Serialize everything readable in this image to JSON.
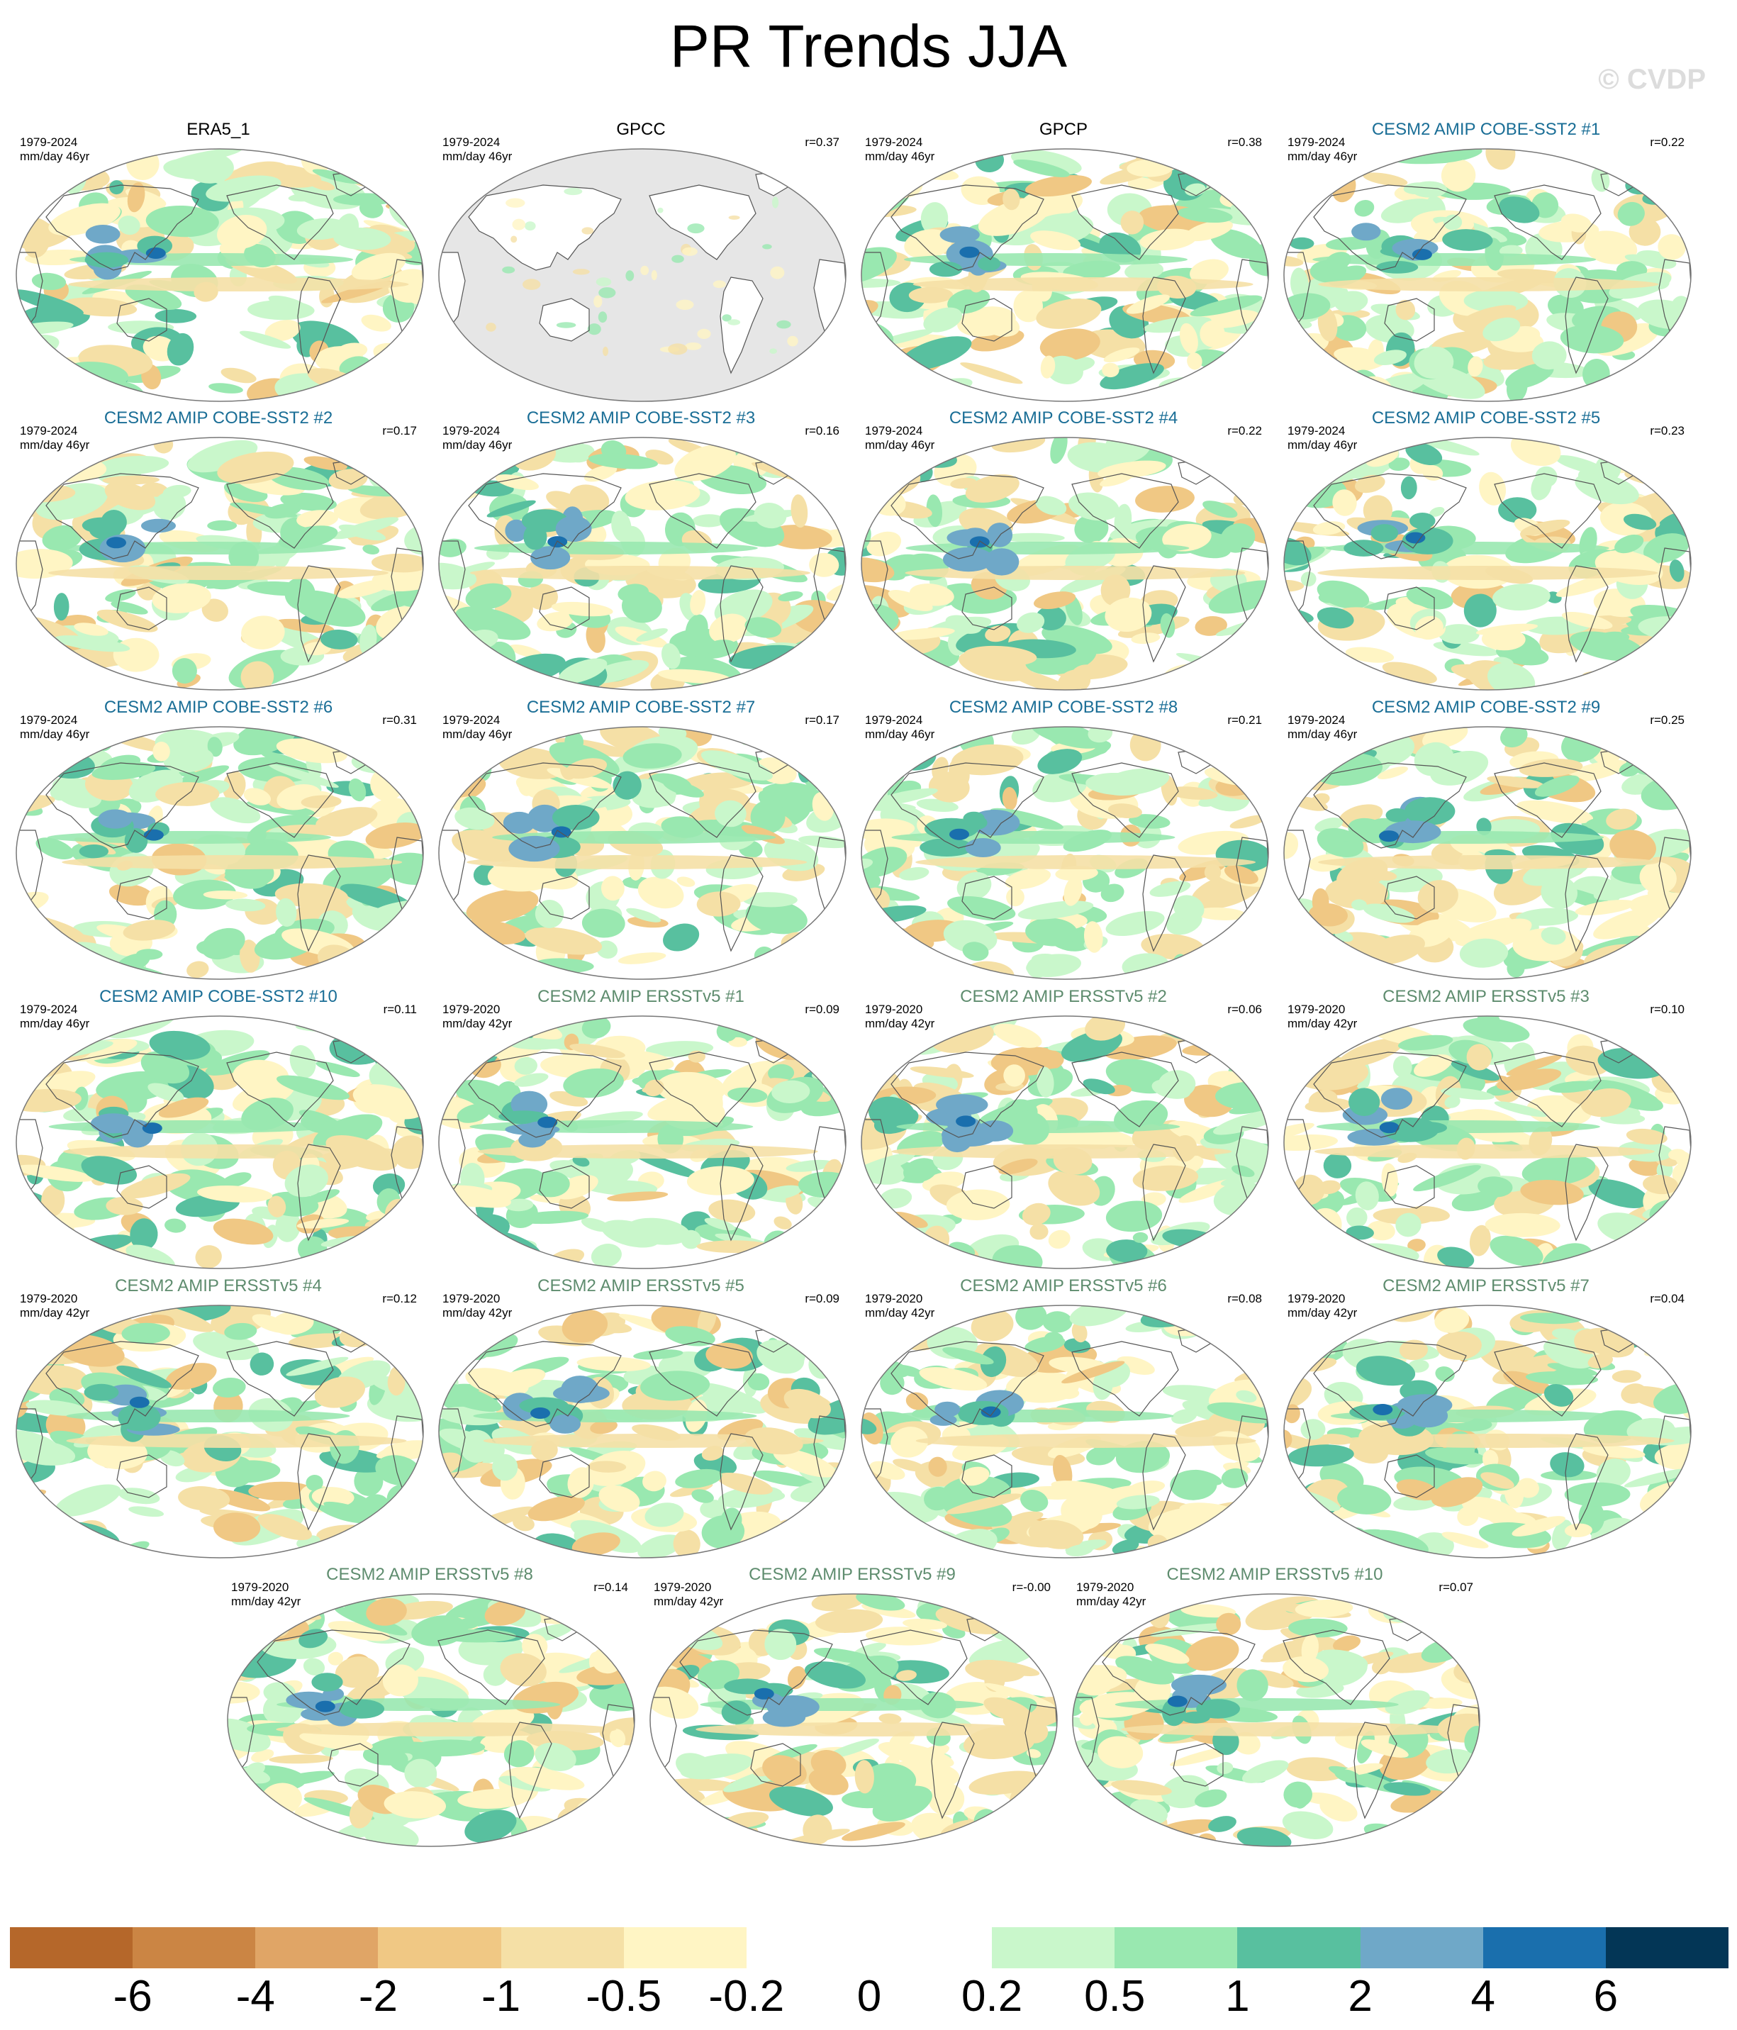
{
  "title": "PR Trends JJA",
  "watermark": "© CVDP",
  "title_colors": {
    "obs": "#000000",
    "cobe": "#1a6e96",
    "ersst": "#5e8c6e"
  },
  "panels": [
    {
      "title": "ERA5_1",
      "group": "obs",
      "period": "1979-2024",
      "units": "mm/day 46yr",
      "r": "",
      "land_masked": false
    },
    {
      "title": "GPCC",
      "group": "obs",
      "period": "1979-2024",
      "units": "mm/day 46yr",
      "r": "r=0.37",
      "land_masked": true
    },
    {
      "title": "GPCP",
      "group": "obs",
      "period": "1979-2024",
      "units": "mm/day 46yr",
      "r": "r=0.38",
      "land_masked": false
    },
    {
      "title": "CESM2 AMIP COBE-SST2 #1",
      "group": "cobe",
      "period": "1979-2024",
      "units": "mm/day 46yr",
      "r": "r=0.22",
      "land_masked": false
    },
    {
      "title": "CESM2 AMIP COBE-SST2 #2",
      "group": "cobe",
      "period": "1979-2024",
      "units": "mm/day 46yr",
      "r": "r=0.17",
      "land_masked": false
    },
    {
      "title": "CESM2 AMIP COBE-SST2 #3",
      "group": "cobe",
      "period": "1979-2024",
      "units": "mm/day 46yr",
      "r": "r=0.16",
      "land_masked": false
    },
    {
      "title": "CESM2 AMIP COBE-SST2 #4",
      "group": "cobe",
      "period": "1979-2024",
      "units": "mm/day 46yr",
      "r": "r=0.22",
      "land_masked": false
    },
    {
      "title": "CESM2 AMIP COBE-SST2 #5",
      "group": "cobe",
      "period": "1979-2024",
      "units": "mm/day 46yr",
      "r": "r=0.23",
      "land_masked": false
    },
    {
      "title": "CESM2 AMIP COBE-SST2 #6",
      "group": "cobe",
      "period": "1979-2024",
      "units": "mm/day 46yr",
      "r": "r=0.31",
      "land_masked": false
    },
    {
      "title": "CESM2 AMIP COBE-SST2 #7",
      "group": "cobe",
      "period": "1979-2024",
      "units": "mm/day 46yr",
      "r": "r=0.17",
      "land_masked": false
    },
    {
      "title": "CESM2 AMIP COBE-SST2 #8",
      "group": "cobe",
      "period": "1979-2024",
      "units": "mm/day 46yr",
      "r": "r=0.21",
      "land_masked": false
    },
    {
      "title": "CESM2 AMIP COBE-SST2 #9",
      "group": "cobe",
      "period": "1979-2024",
      "units": "mm/day 46yr",
      "r": "r=0.25",
      "land_masked": false
    },
    {
      "title": "CESM2 AMIP COBE-SST2 #10",
      "group": "cobe",
      "period": "1979-2024",
      "units": "mm/day 46yr",
      "r": "r=0.11",
      "land_masked": false
    },
    {
      "title": "CESM2 AMIP ERSSTv5 #1",
      "group": "ersst",
      "period": "1979-2020",
      "units": "mm/day 42yr",
      "r": "r=0.09",
      "land_masked": false
    },
    {
      "title": "CESM2 AMIP ERSSTv5 #2",
      "group": "ersst",
      "period": "1979-2020",
      "units": "mm/day 42yr",
      "r": "r=0.06",
      "land_masked": false
    },
    {
      "title": "CESM2 AMIP ERSSTv5 #3",
      "group": "ersst",
      "period": "1979-2020",
      "units": "mm/day 42yr",
      "r": "r=0.10",
      "land_masked": false
    },
    {
      "title": "CESM2 AMIP ERSSTv5 #4",
      "group": "ersst",
      "period": "1979-2020",
      "units": "mm/day 42yr",
      "r": "r=0.12",
      "land_masked": false
    },
    {
      "title": "CESM2 AMIP ERSSTv5 #5",
      "group": "ersst",
      "period": "1979-2020",
      "units": "mm/day 42yr",
      "r": "r=0.09",
      "land_masked": false
    },
    {
      "title": "CESM2 AMIP ERSSTv5 #6",
      "group": "ersst",
      "period": "1979-2020",
      "units": "mm/day 42yr",
      "r": "r=0.08",
      "land_masked": false
    },
    {
      "title": "CESM2 AMIP ERSSTv5 #7",
      "group": "ersst",
      "period": "1979-2020",
      "units": "mm/day 42yr",
      "r": "r=0.04",
      "land_masked": false
    },
    {
      "title": "CESM2 AMIP ERSSTv5 #8",
      "group": "ersst",
      "period": "1979-2020",
      "units": "mm/day 42yr",
      "r": "r=0.14",
      "land_masked": false
    },
    {
      "title": "CESM2 AMIP ERSSTv5 #9",
      "group": "ersst",
      "period": "1979-2020",
      "units": "mm/day 42yr",
      "r": "r=-0.00",
      "land_masked": false
    },
    {
      "title": "CESM2 AMIP ERSSTv5 #10",
      "group": "ersst",
      "period": "1979-2020",
      "units": "mm/day 42yr",
      "r": "r=0.07",
      "land_masked": false
    }
  ],
  "colorbar": {
    "colors": [
      "#b5672a",
      "#cb8544",
      "#e0a566",
      "#f0c884",
      "#f5e0a6",
      "#fff5c4",
      "#ffffff",
      "#ffffff",
      "#c9f7cb",
      "#99e8b0",
      "#58c09f",
      "#6fa8c8",
      "#1a6fad",
      "#033656"
    ],
    "labels": [
      "-6",
      "-4",
      "-2",
      "-1",
      "-0.5",
      "-0.2",
      "0",
      "0.2",
      "0.5",
      "1",
      "2",
      "4",
      "6"
    ]
  },
  "map_colors": {
    "land_mask": "#e6e6e6",
    "coast": "#555555",
    "outline": "#777777"
  }
}
